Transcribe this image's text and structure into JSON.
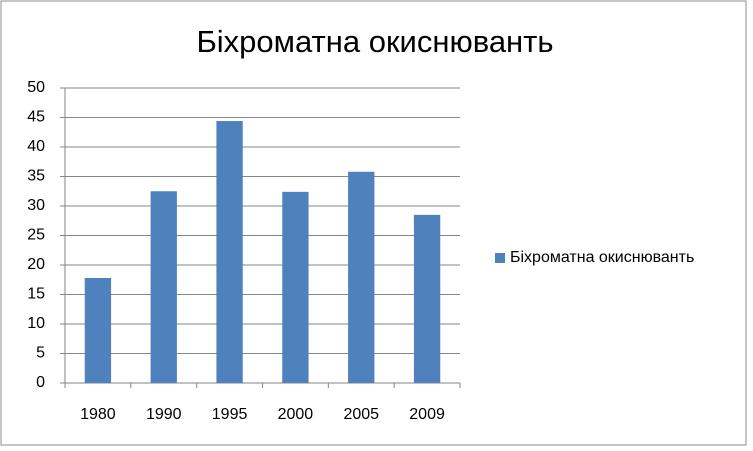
{
  "chart_data": {
    "type": "bar",
    "title": "Біхроматна окиснюванть",
    "categories": [
      "1980",
      "1990",
      "1995",
      "2000",
      "2005",
      "2009"
    ],
    "series": [
      {
        "name": "Біхроматна окиснюванть",
        "color": "#4f81bd",
        "values": [
          17.8,
          32.5,
          44.4,
          32.4,
          35.8,
          28.5
        ]
      }
    ],
    "ylim": [
      0,
      50
    ],
    "yticks": [
      0,
      5,
      10,
      15,
      20,
      25,
      30,
      35,
      40,
      45,
      50
    ],
    "grid": true,
    "legend": "right"
  }
}
